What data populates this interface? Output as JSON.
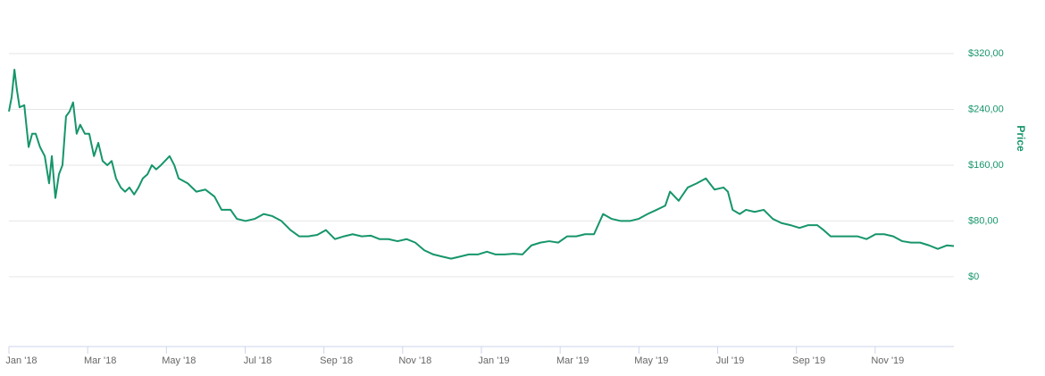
{
  "chart_data": {
    "type": "line",
    "y_label": "Price",
    "x": [
      0,
      0.07,
      0.14,
      0.2,
      0.27,
      0.39,
      0.5,
      0.59,
      0.68,
      0.79,
      0.91,
      1.02,
      1.09,
      1.18,
      1.27,
      1.36,
      1.45,
      1.54,
      1.63,
      1.72,
      1.81,
      1.93,
      2.04,
      2.16,
      2.27,
      2.38,
      2.5,
      2.61,
      2.72,
      2.84,
      2.95,
      3.06,
      3.18,
      3.29,
      3.4,
      3.52,
      3.63,
      3.74,
      3.86,
      4.08,
      4.2,
      4.31,
      4.54,
      4.76,
      4.99,
      5.22,
      5.4,
      5.63,
      5.79,
      6.01,
      6.24,
      6.47,
      6.69,
      6.92,
      7.15,
      7.37,
      7.6,
      7.83,
      8.05,
      8.28,
      8.51,
      8.73,
      8.96,
      9.19,
      9.41,
      9.64,
      9.87,
      10.1,
      10.32,
      10.55,
      10.78,
      11,
      11.23,
      11.46,
      11.68,
      11.91,
      12.14,
      12.36,
      12.59,
      12.82,
      13.04,
      13.27,
      13.5,
      13.72,
      13.95,
      14.18,
      14.41,
      14.63,
      14.86,
      15.09,
      15.31,
      15.54,
      15.77,
      15.99,
      16.22,
      16.45,
      16.67,
      16.79,
      17.01,
      17.24,
      17.47,
      17.7,
      17.92,
      18.15,
      18.26,
      18.38,
      18.56,
      18.72,
      18.94,
      19.17,
      19.4,
      19.62,
      19.85,
      20.08,
      20.3,
      20.53,
      20.69,
      20.87,
      21.1,
      21.32,
      21.55,
      21.78,
      22.01,
      22.23,
      22.46,
      22.69,
      22.91,
      23.14,
      23.37,
      23.59,
      23.82,
      24
    ],
    "series": [
      {
        "color": "#16956b",
        "values": [
          237,
          258,
          297,
          269,
          243,
          246,
          186,
          205,
          205,
          186,
          173,
          134,
          173,
          113,
          147,
          160,
          230,
          237,
          250,
          205,
          218,
          205,
          205,
          173,
          192,
          166,
          160,
          166,
          141,
          128,
          122,
          128,
          118,
          128,
          141,
          147,
          160,
          154,
          160,
          173,
          160,
          141,
          134,
          122,
          125,
          115,
          96,
          96,
          83,
          80,
          83,
          90,
          87,
          80,
          67,
          58,
          58,
          60,
          67,
          54,
          58,
          61,
          58,
          59,
          54,
          54,
          51,
          54,
          49,
          38,
          32,
          29,
          26,
          29,
          32,
          32,
          36,
          32,
          32,
          33,
          32,
          45,
          49,
          51,
          49,
          58,
          58,
          61,
          61,
          90,
          83,
          80,
          80,
          83,
          90,
          96,
          102,
          122,
          109,
          128,
          134,
          141,
          125,
          128,
          122,
          96,
          90,
          96,
          93,
          96,
          83,
          77,
          74,
          70,
          74,
          74,
          67,
          58,
          58,
          58,
          58,
          54,
          61,
          61,
          58,
          51,
          49,
          49,
          45,
          40,
          45,
          44
        ]
      }
    ],
    "xlim": [
      0,
      24
    ],
    "xticks": [
      {
        "value": 0,
        "label": "Jan '18"
      },
      {
        "value": 2,
        "label": "Mar '18"
      },
      {
        "value": 4,
        "label": "May '18"
      },
      {
        "value": 6,
        "label": "Jul '18"
      },
      {
        "value": 8,
        "label": "Sep '18"
      },
      {
        "value": 10,
        "label": "Nov '18"
      },
      {
        "value": 12,
        "label": "Jan '19"
      },
      {
        "value": 14,
        "label": "Mar '19"
      },
      {
        "value": 16,
        "label": "May '19"
      },
      {
        "value": 18,
        "label": "Jul '19"
      },
      {
        "value": 20,
        "label": "Sep '19"
      },
      {
        "value": 22,
        "label": "Nov '19"
      }
    ],
    "ylim": [
      -100,
      400
    ],
    "yticks": [
      {
        "value": 0,
        "label": "$0"
      },
      {
        "value": 80,
        "label": "$80,00"
      },
      {
        "value": 160,
        "label": "$160,00"
      },
      {
        "value": 240,
        "label": "$240,00"
      },
      {
        "value": 320,
        "label": "$320,00"
      }
    ],
    "grid": true
  }
}
